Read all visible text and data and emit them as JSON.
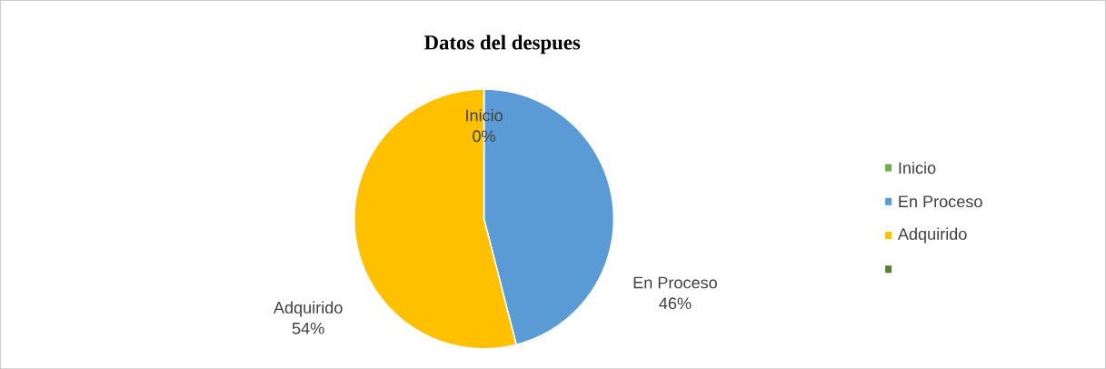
{
  "chart_data": {
    "type": "pie",
    "title": "Datos del despues",
    "categories": [
      "Inicio",
      "En Proceso",
      "Adquirido",
      null
    ],
    "values": [
      0,
      46,
      54,
      0
    ],
    "colors": [
      "#70ad47",
      "#5b9bd5",
      "#ffc000",
      "#548235"
    ],
    "value_labels": [
      "0%",
      "46%",
      "54%",
      null
    ],
    "legend": "right"
  }
}
